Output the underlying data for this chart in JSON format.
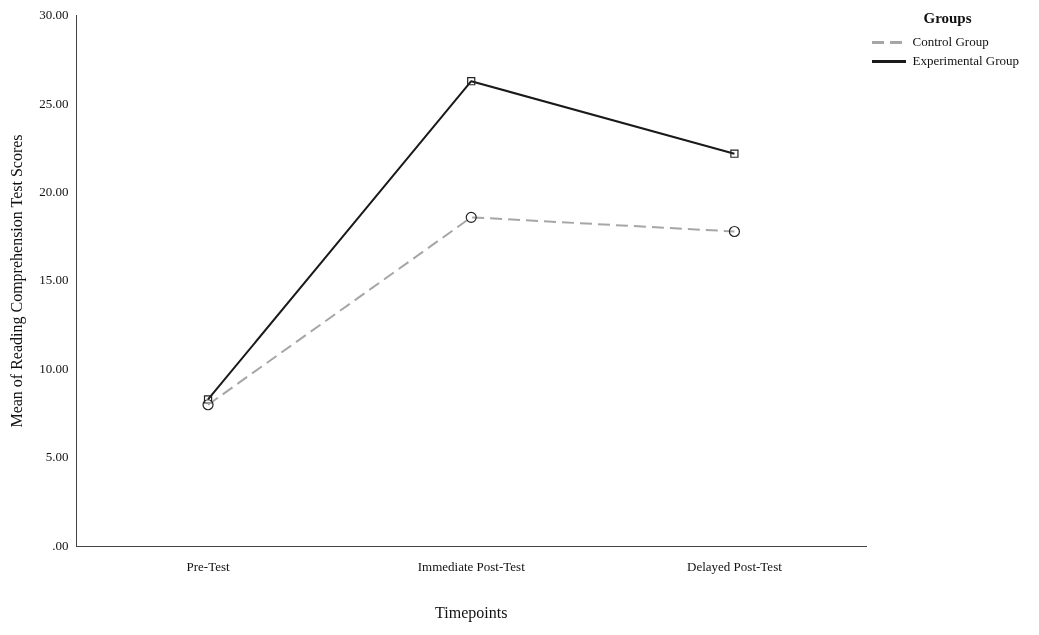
{
  "chart_data": {
    "type": "line",
    "xlabel": "Timepoints",
    "ylabel": "Mean of Reading Comprehension Test Scores",
    "legend_title": "Groups",
    "legend": "top right",
    "grid": false,
    "categories": [
      "Pre-Test",
      "Immediate Post-Test",
      "Delayed Post-Test"
    ],
    "ylim": [
      0,
      30
    ],
    "yticks": [
      {
        "value": 0,
        "label": ".00"
      },
      {
        "value": 5,
        "label": "5.00"
      },
      {
        "value": 10,
        "label": "10.00"
      },
      {
        "value": 15,
        "label": "15.00"
      },
      {
        "value": 20,
        "label": "20.00"
      },
      {
        "value": 25,
        "label": "25.00"
      },
      {
        "value": 30,
        "label": "30.00"
      }
    ],
    "series": [
      {
        "name": "Control Group",
        "color": "#a6a6a6",
        "line_style": "dashed",
        "marker": "circle",
        "values": [
          8.0,
          18.6,
          17.8
        ]
      },
      {
        "name": "Experimental Group",
        "color": "#1a1a1a",
        "line_style": "solid",
        "marker": "square",
        "values": [
          8.3,
          26.3,
          22.2
        ]
      }
    ]
  }
}
